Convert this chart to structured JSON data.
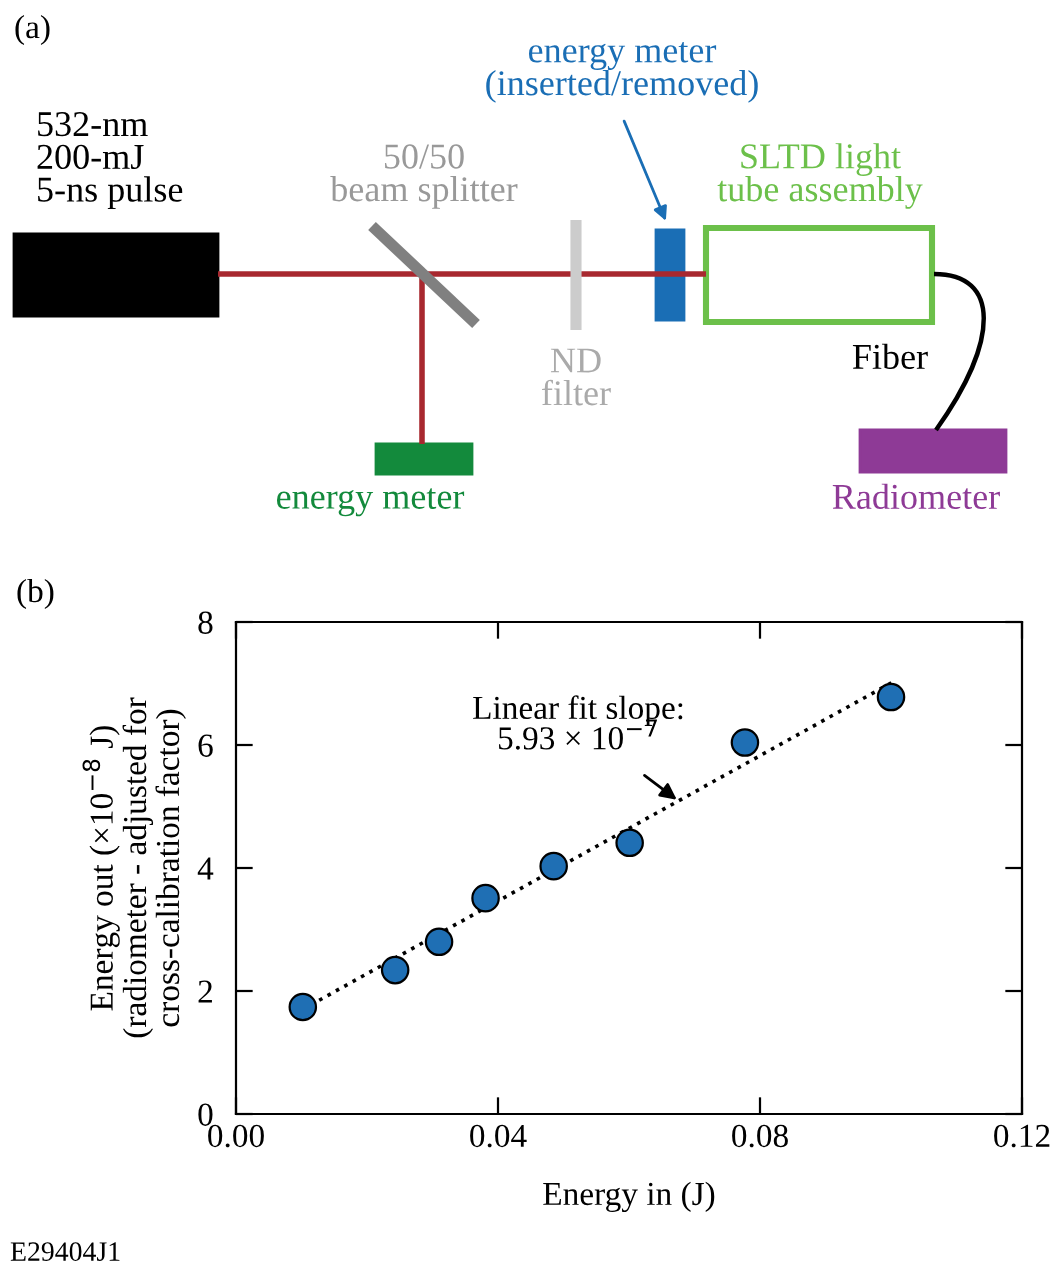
{
  "chart_data": [
    {
      "type": "other",
      "title": "(a)",
      "annotations": [
        "532-nm\n200-mJ\n5-ns pulse",
        "50/50\nbeam splitter",
        "ND\nfilter",
        "energy meter\n(inserted/removed)",
        "SLTD light\ntube assembly",
        "Fiber",
        "energy meter",
        "Radiometer"
      ]
    },
    {
      "type": "scatter",
      "title": "(b)",
      "xlabel": "Energy in (J)",
      "ylabel": "Energy out (×10$^{−8}$ J)\n(radiometer - adjusted for\ncross-calibration factor)",
      "xlim": [
        0,
        0.12
      ],
      "ylim": [
        0,
        8
      ],
      "xticks": [
        {
          "value": 0,
          "label": "0.00"
        },
        {
          "value": 0.04,
          "label": "0.04"
        },
        {
          "value": 0.08,
          "label": "0.08"
        },
        {
          "value": 0.12,
          "label": "0.12"
        }
      ],
      "yticks": [
        0,
        2,
        4,
        6,
        8
      ],
      "grid": false,
      "legend": false,
      "series": [
        {
          "type": "scatter",
          "marker": "circle",
          "color": "#1f6fb4",
          "x": [
            0.0102,
            0.0243,
            0.031,
            0.0381,
            0.0485,
            0.0601,
            0.0777,
            0.1
          ],
          "values": [
            1.74,
            2.34,
            2.8,
            3.51,
            4.03,
            4.41,
            6.04,
            6.78
          ]
        },
        {
          "type": "line",
          "marker": "none",
          "color": "#000000",
          "line_style": "dotted",
          "x": [
            0.0127,
            0.1002
          ],
          "values": [
            1.85,
            7.02
          ]
        }
      ],
      "annotations": [
        {
          "text": "Linear fit slope:\n5.93 × 10$^{−7}$",
          "x": 0.0673,
          "y": 5.11
        },
        "E29404J1"
      ]
    }
  ]
}
